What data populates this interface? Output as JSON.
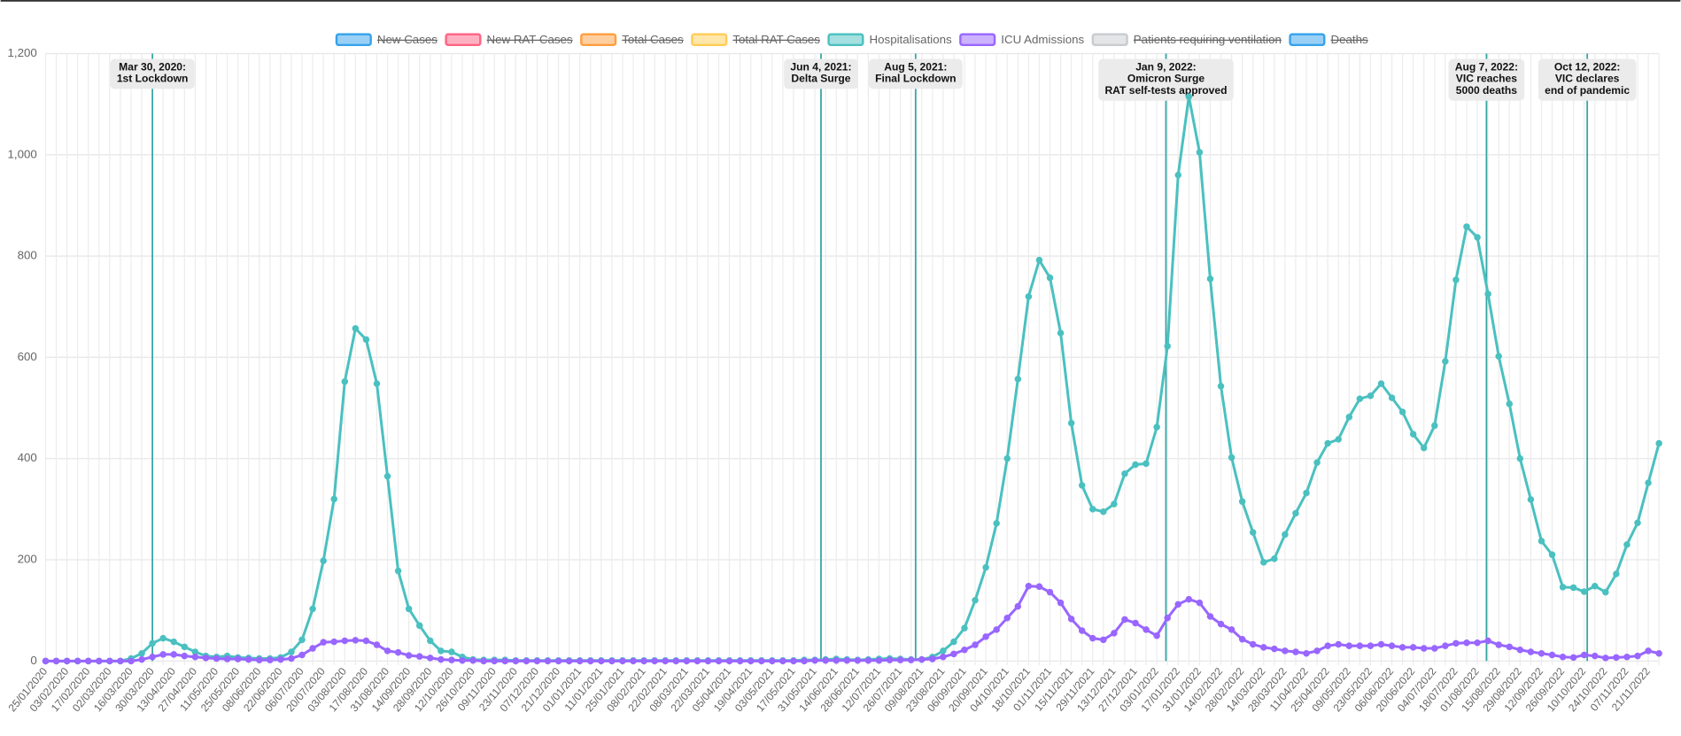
{
  "chart_data": {
    "type": "line",
    "categories": [
      "25/01/2020",
      null,
      "03/02/2020",
      null,
      "17/02/2020",
      null,
      "02/03/2020",
      null,
      "16/03/2020",
      null,
      "30/03/2020",
      null,
      "13/04/2020",
      null,
      "27/04/2020",
      null,
      "11/05/2020",
      null,
      "25/05/2020",
      null,
      "08/06/2020",
      null,
      "22/06/2020",
      null,
      "06/07/2020",
      null,
      "20/07/2020",
      null,
      "03/08/2020",
      null,
      "17/08/2020",
      null,
      "31/08/2020",
      null,
      "14/09/2020",
      null,
      "28/09/2020",
      null,
      "12/10/2020",
      null,
      "26/10/2020",
      null,
      "09/11/2020",
      null,
      "23/11/2020",
      null,
      "07/12/2020",
      null,
      "21/12/2020",
      null,
      "01/01/2021",
      null,
      "11/01/2021",
      null,
      "25/01/2021",
      null,
      "08/02/2021",
      null,
      "22/02/2021",
      null,
      "08/03/2021",
      null,
      "22/03/2021",
      null,
      "05/04/2021",
      null,
      "19/04/2021",
      null,
      "03/05/2021",
      null,
      "17/05/2021",
      null,
      "31/05/2021",
      null,
      "14/06/2021",
      null,
      "28/06/2021",
      null,
      "12/07/2021",
      null,
      "26/07/2021",
      null,
      "09/08/2021",
      null,
      "23/08/2021",
      null,
      "06/09/2021",
      null,
      "20/09/2021",
      null,
      "04/10/2021",
      null,
      "18/10/2021",
      null,
      "01/11/2021",
      null,
      "15/11/2021",
      null,
      "29/11/2021",
      null,
      "13/12/2021",
      null,
      "27/12/2021",
      null,
      "03/01/2022",
      null,
      "17/01/2022",
      null,
      "31/01/2022",
      null,
      "14/02/2022",
      null,
      "28/02/2022",
      null,
      "14/03/2022",
      null,
      "28/03/2022",
      null,
      "11/04/2022",
      null,
      "25/04/2022",
      null,
      "09/05/2022",
      null,
      "23/05/2022",
      null,
      "06/06/2022",
      null,
      "20/06/2022",
      null,
      "04/07/2022",
      null,
      "18/07/2022",
      null,
      "01/08/2022",
      null,
      "15/08/2022",
      null,
      "29/08/2022",
      null,
      "12/09/2022",
      null,
      "26/09/2022",
      null,
      "10/10/2022",
      null,
      "24/10/2022",
      null,
      "07/11/2022",
      null,
      "21/11/2022",
      null
    ],
    "series": [
      {
        "name": "New Cases",
        "color": "#36a2eb",
        "hidden": true
      },
      {
        "name": "New RAT Cases",
        "color": "#ff6384",
        "hidden": true
      },
      {
        "name": "Total Cases",
        "color": "#ff9f40",
        "hidden": true
      },
      {
        "name": "Total RAT Cases",
        "color": "#ffcd56",
        "hidden": true
      },
      {
        "name": "Hospitalisations",
        "color": "#4bc0c0",
        "hidden": false,
        "values": [
          0,
          0,
          0,
          0,
          0,
          0,
          0,
          0,
          5,
          15,
          35,
          45,
          38,
          28,
          18,
          10,
          8,
          10,
          7,
          6,
          5,
          5,
          7,
          18,
          42,
          103,
          198,
          320,
          552,
          657,
          635,
          548,
          365,
          178,
          103,
          70,
          40,
          20,
          18,
          8,
          3,
          2,
          2,
          2,
          1,
          1,
          1,
          1,
          1,
          1,
          1,
          1,
          1,
          1,
          1,
          1,
          1,
          1,
          1,
          1,
          1,
          1,
          1,
          1,
          1,
          1,
          1,
          1,
          1,
          1,
          1,
          2,
          2,
          3,
          4,
          3,
          2,
          3,
          4,
          5,
          4,
          3,
          3,
          8,
          20,
          38,
          65,
          120,
          185,
          272,
          400,
          557,
          720,
          792,
          757,
          648,
          470,
          347,
          300,
          295,
          310,
          370,
          388,
          390,
          462,
          622,
          960,
          1115,
          1005,
          755,
          543,
          402,
          315,
          254,
          195,
          202,
          250,
          292,
          332,
          392,
          430,
          438,
          482,
          518,
          524,
          548,
          520,
          492,
          448,
          421,
          465,
          592,
          753,
          858,
          837,
          725,
          602,
          508,
          400,
          319,
          237,
          210,
          146,
          145,
          137,
          148,
          136,
          172,
          230,
          273,
          352,
          430
        ]
      },
      {
        "name": "ICU Admissions",
        "color": "#9966ff",
        "hidden": false,
        "values": [
          0,
          0,
          0,
          0,
          0,
          0,
          0,
          0,
          0,
          3,
          8,
          13,
          13,
          10,
          8,
          6,
          5,
          4,
          4,
          3,
          2,
          2,
          3,
          5,
          12,
          25,
          37,
          38,
          40,
          41,
          40,
          32,
          20,
          17,
          11,
          9,
          6,
          3,
          2,
          1,
          1,
          0,
          0,
          0,
          0,
          0,
          0,
          0,
          0,
          0,
          0,
          0,
          0,
          0,
          0,
          0,
          0,
          0,
          0,
          0,
          0,
          0,
          0,
          0,
          0,
          0,
          0,
          0,
          0,
          0,
          0,
          0,
          1,
          1,
          1,
          1,
          1,
          1,
          1,
          2,
          2,
          2,
          3,
          4,
          8,
          14,
          22,
          32,
          48,
          62,
          85,
          108,
          148,
          147,
          136,
          115,
          83,
          60,
          45,
          42,
          55,
          82,
          75,
          62,
          50,
          85,
          112,
          122,
          115,
          88,
          73,
          62,
          43,
          33,
          27,
          24,
          20,
          18,
          15,
          20,
          30,
          33,
          30,
          30,
          30,
          33,
          30,
          27,
          27,
          25,
          25,
          30,
          35,
          36,
          36,
          40,
          32,
          28,
          22,
          18,
          15,
          12,
          8,
          7,
          12,
          10,
          6,
          7,
          8,
          10,
          20,
          15
        ]
      },
      {
        "name": "Patients requiring ventilation",
        "color": "#c9cbcf",
        "hidden": true
      },
      {
        "name": "Deaths",
        "color": "#36a2eb",
        "hidden": true
      }
    ],
    "ylim": [
      0,
      1200
    ],
    "yticks": [
      0,
      200,
      400,
      600,
      800,
      {
        "value": 1000,
        "label": "1,000"
      },
      {
        "value": 1200,
        "label": "1,200"
      }
    ],
    "grid": true,
    "legend": "top",
    "annotations": [
      {
        "lines": [
          "Mar 30, 2020:",
          "1st Lockdown"
        ]
      },
      {
        "lines": [
          "Jun 4, 2021:",
          "Delta Surge"
        ]
      },
      {
        "lines": [
          "Aug 5, 2021:",
          "Final Lockdown"
        ]
      },
      {
        "lines": [
          "Jan 9, 2022:",
          "Omicron Surge",
          "RAT self-tests approved"
        ]
      },
      {
        "lines": [
          "Aug 7, 2022:",
          "VIC reaches",
          "5000 deaths"
        ]
      },
      {
        "lines": [
          "Oct 12, 2022:",
          "VIC declares",
          "end of pandemic"
        ]
      }
    ]
  }
}
